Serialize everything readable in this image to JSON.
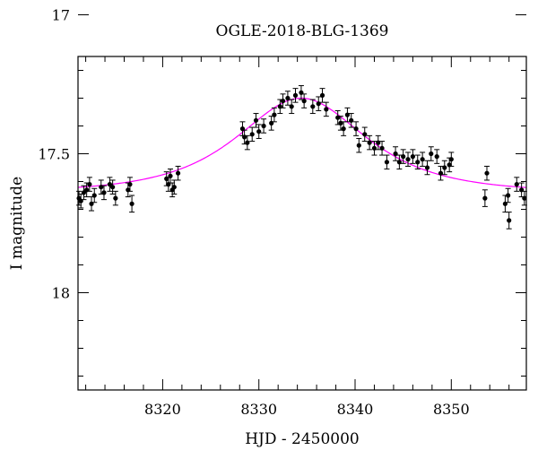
{
  "chart_data": {
    "type": "scatter",
    "title": "OGLE-2018-BLG-1369",
    "xlabel": "HJD - 2450000",
    "ylabel": "I magnitude",
    "xlim": [
      8311.2,
      8357.8
    ],
    "ylim": [
      18.35,
      17.15
    ],
    "y_axis_inverted": true,
    "x_ticks": [
      8320,
      8330,
      8340,
      8350
    ],
    "x_tick_labels": [
      "8320",
      "8330",
      "8340",
      "8350"
    ],
    "y_ticks": [
      17,
      17.5,
      18
    ],
    "y_tick_labels": [
      "17",
      "17.5",
      "18"
    ],
    "x_minor_step": 2,
    "y_minor_step": 0.1,
    "grid": false,
    "colors": {
      "points": "#000000",
      "model": "#ff00ff"
    },
    "model": {
      "type": "microlensing",
      "baseline_mag": 17.64,
      "peak_mag": 17.3,
      "t0": 8334.4,
      "u0": 0.92,
      "tE": 8.5
    },
    "series": [
      {
        "points": [
          [
            8311.3,
            17.66,
            0.025
          ],
          [
            8311.5,
            17.67,
            0.025
          ],
          [
            8311.8,
            17.64,
            0.025
          ],
          [
            8312.1,
            17.63,
            0.025
          ],
          [
            8312.4,
            17.61,
            0.025
          ],
          [
            8312.6,
            17.68,
            0.025
          ],
          [
            8312.9,
            17.65,
            0.025
          ],
          [
            8313.6,
            17.62,
            0.025
          ],
          [
            8313.9,
            17.64,
            0.025
          ],
          [
            8314.5,
            17.61,
            0.025
          ],
          [
            8314.8,
            17.62,
            0.025
          ],
          [
            8315.1,
            17.66,
            0.025
          ],
          [
            8316.4,
            17.63,
            0.025
          ],
          [
            8316.6,
            17.61,
            0.025
          ],
          [
            8316.8,
            17.68,
            0.03
          ],
          [
            8320.4,
            17.59,
            0.025
          ],
          [
            8320.6,
            17.61,
            0.025
          ],
          [
            8320.8,
            17.58,
            0.025
          ],
          [
            8321.0,
            17.63,
            0.025
          ],
          [
            8321.2,
            17.62,
            0.025
          ],
          [
            8321.6,
            17.57,
            0.025
          ],
          [
            8328.3,
            17.41,
            0.025
          ],
          [
            8328.5,
            17.44,
            0.025
          ],
          [
            8328.8,
            17.46,
            0.025
          ],
          [
            8329.3,
            17.43,
            0.025
          ],
          [
            8329.7,
            17.38,
            0.025
          ],
          [
            8330.0,
            17.42,
            0.025
          ],
          [
            8330.5,
            17.4,
            0.025
          ],
          [
            8331.3,
            17.39,
            0.025
          ],
          [
            8331.6,
            17.36,
            0.025
          ],
          [
            8332.2,
            17.33,
            0.025
          ],
          [
            8332.5,
            17.31,
            0.025
          ],
          [
            8333.0,
            17.3,
            0.025
          ],
          [
            8333.4,
            17.33,
            0.025
          ],
          [
            8333.8,
            17.29,
            0.025
          ],
          [
            8334.4,
            17.28,
            0.025
          ],
          [
            8334.7,
            17.31,
            0.025
          ],
          [
            8335.6,
            17.33,
            0.025
          ],
          [
            8336.2,
            17.32,
            0.025
          ],
          [
            8336.6,
            17.29,
            0.025
          ],
          [
            8337.0,
            17.34,
            0.025
          ],
          [
            8338.2,
            17.37,
            0.025
          ],
          [
            8338.5,
            17.39,
            0.025
          ],
          [
            8338.8,
            17.41,
            0.025
          ],
          [
            8339.2,
            17.36,
            0.025
          ],
          [
            8339.6,
            17.38,
            0.025
          ],
          [
            8340.1,
            17.41,
            0.025
          ],
          [
            8340.4,
            17.47,
            0.025
          ],
          [
            8341.0,
            17.43,
            0.025
          ],
          [
            8341.5,
            17.46,
            0.025
          ],
          [
            8342.0,
            17.48,
            0.025
          ],
          [
            8342.4,
            17.46,
            0.025
          ],
          [
            8342.8,
            17.48,
            0.025
          ],
          [
            8343.3,
            17.53,
            0.025
          ],
          [
            8344.2,
            17.5,
            0.025
          ],
          [
            8344.6,
            17.53,
            0.025
          ],
          [
            8345.0,
            17.51,
            0.025
          ],
          [
            8345.5,
            17.52,
            0.025
          ],
          [
            8346.0,
            17.51,
            0.025
          ],
          [
            8346.5,
            17.53,
            0.025
          ],
          [
            8347.0,
            17.52,
            0.025
          ],
          [
            8347.5,
            17.55,
            0.025
          ],
          [
            8347.9,
            17.5,
            0.025
          ],
          [
            8348.5,
            17.51,
            0.025
          ],
          [
            8348.9,
            17.57,
            0.025
          ],
          [
            8349.3,
            17.55,
            0.025
          ],
          [
            8349.8,
            17.54,
            0.025
          ],
          [
            8350.0,
            17.52,
            0.025
          ],
          [
            8353.5,
            17.66,
            0.03
          ],
          [
            8353.7,
            17.57,
            0.025
          ],
          [
            8355.6,
            17.68,
            0.03
          ],
          [
            8355.9,
            17.65,
            0.025
          ],
          [
            8356.0,
            17.74,
            0.03
          ],
          [
            8356.8,
            17.61,
            0.025
          ],
          [
            8357.3,
            17.63,
            0.025
          ],
          [
            8357.6,
            17.66,
            0.025
          ]
        ]
      }
    ]
  }
}
